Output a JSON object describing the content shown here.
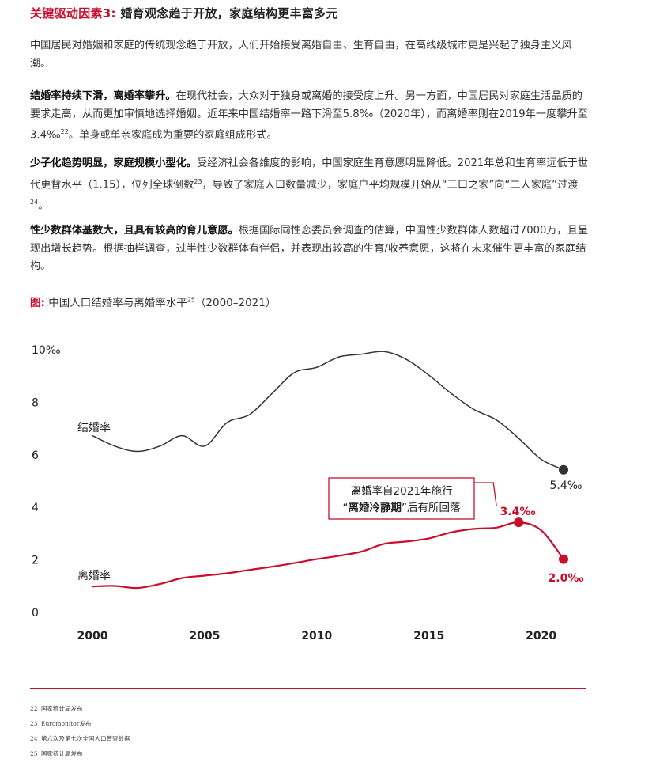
{
  "heading": {
    "prefix": "关键驱动因素3:",
    "text": "婚育观念趋于开放，家庭结构更丰富多元"
  },
  "paragraphs": {
    "p1": {
      "text": "中国居民对婚姻和家庭的传统观念趋于开放，人们开始接受离婚自由、生育自由，在高线级城市更是兴起了独身主义风潮。"
    },
    "p2": {
      "lead": "结婚率持续下滑，离婚率攀升。",
      "text": "在现代社会，大众对于独身或离婚的接受度上升。另一方面，中国居民对家庭生活品质的要求走高，从而更加审慎地选择婚姻。近年来中国结婚率一路下滑至5.8‰（2020年），而离婚率则在2019年一度攀升至3.4‰",
      "sup": "22",
      "tail": "。单身或单亲家庭成为重要的家庭组成形式。"
    },
    "p3": {
      "lead": "少子化趋势明显，家庭规模小型化。",
      "text": "受经济社会各维度的影响，中国家庭生育意愿明显降低。2021年总和生育率远低于世代更替水平（1.15），位列全球倒数",
      "sup": "23",
      "tail": "，导致了家庭人口数量减少，家庭户平均规模开始从“三口之家”向“二人家庭”过渡",
      "sup2": "24",
      "tail2": "。"
    },
    "p4": {
      "lead": "性少数群体基数大，且具有较高的育儿意愿。",
      "text": "根据国际同性恋委员会调查的估算，中国性少数群体人数超过7000万，且呈现出增长趋势。根据抽样调查，过半性少数群体有伴侣，并表现出较高的生育/收养意愿，这将在未来催生更丰富的家庭结构。"
    }
  },
  "figure": {
    "label": "图:",
    "title": "中国人口结婚率与离婚率水平",
    "sup": "25",
    "range": "（2000–2021）"
  },
  "chart_data": {
    "type": "line",
    "x_ticks": [
      "2000",
      "2005",
      "2010",
      "2015",
      "2020"
    ],
    "y_ticks": [
      "10‰",
      "8",
      "6",
      "4",
      "2",
      "0"
    ],
    "ylim": [
      0,
      10
    ],
    "xlim": [
      2000,
      2021
    ],
    "series": [
      {
        "name": "结婚率",
        "color": "#333333",
        "x": [
          2000,
          2001,
          2002,
          2003,
          2004,
          2005,
          2006,
          2007,
          2008,
          2009,
          2010,
          2011,
          2012,
          2013,
          2014,
          2015,
          2016,
          2017,
          2018,
          2019,
          2020,
          2021
        ],
        "y": [
          6.7,
          6.3,
          6.1,
          6.3,
          6.7,
          6.3,
          7.2,
          7.5,
          8.3,
          9.1,
          9.3,
          9.7,
          9.8,
          9.9,
          9.6,
          9.0,
          8.3,
          7.7,
          7.3,
          6.6,
          5.8,
          5.4
        ]
      },
      {
        "name": "离婚率",
        "color": "#c8102e",
        "x": [
          2000,
          2001,
          2002,
          2003,
          2004,
          2005,
          2006,
          2007,
          2008,
          2009,
          2010,
          2011,
          2012,
          2013,
          2014,
          2015,
          2016,
          2017,
          2018,
          2019,
          2020,
          2021
        ],
        "y": [
          0.96,
          0.98,
          0.9,
          1.05,
          1.28,
          1.37,
          1.46,
          1.59,
          1.71,
          1.85,
          2.0,
          2.13,
          2.29,
          2.58,
          2.67,
          2.79,
          3.02,
          3.15,
          3.2,
          3.4,
          3.1,
          2.0
        ]
      }
    ],
    "end_labels": {
      "marriage_end": "5.4‰",
      "divorce_peak": "3.4‰",
      "divorce_end": "2.0‰"
    },
    "annotation": {
      "line1": "离婚率自2021年施行",
      "line2_quote_open": "“",
      "line2_bold": "离婚冷静期",
      "line2_rest": "”后有所回落"
    }
  },
  "footnotes": [
    {
      "num": "22",
      "text": "国家统计局发布"
    },
    {
      "num": "23",
      "text": "Euromonitor发布"
    },
    {
      "num": "24",
      "text": "第六次及第七次全国人口普查数据"
    },
    {
      "num": "25",
      "text": "国家统计局发布"
    }
  ]
}
